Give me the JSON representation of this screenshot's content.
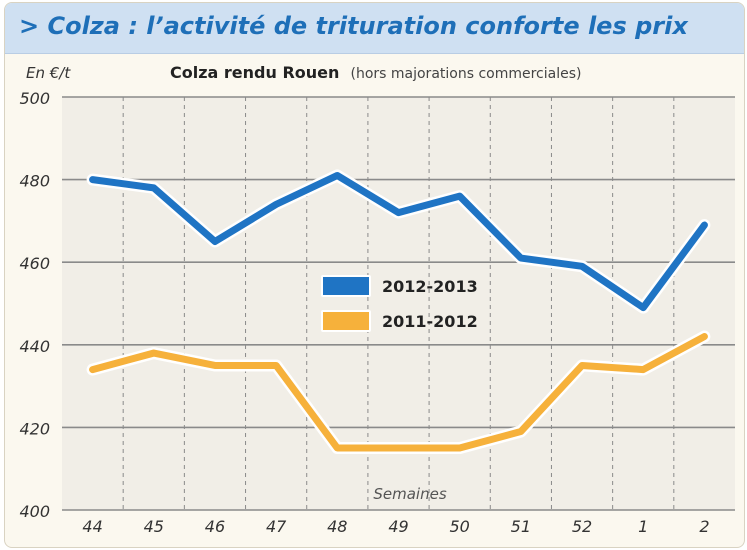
{
  "header": {
    "title": "> Colza : l’activité de trituration conforte les prix"
  },
  "chart_data": {
    "type": "line",
    "title": "Colza rendu Rouen",
    "subtitle": "(hors majorations commerciales)",
    "ylabel": "En €/t",
    "xlabel": "Semaines",
    "categories": [
      "44",
      "45",
      "46",
      "47",
      "48",
      "49",
      "50",
      "51",
      "52",
      "1",
      "2"
    ],
    "ylim": [
      400,
      500
    ],
    "yticks": [
      400,
      420,
      440,
      460,
      480,
      500
    ],
    "grid": {
      "horizontal": "solid",
      "vertical": "dashed"
    },
    "legend_position": "center",
    "series": [
      {
        "name": "2012-2013",
        "color": "#1f74c4",
        "values": [
          480,
          478,
          465,
          474,
          481,
          472,
          476,
          461,
          459,
          449,
          469
        ]
      },
      {
        "name": "2011-2012",
        "color": "#f6b13b",
        "values": [
          434,
          438,
          435,
          435,
          415,
          415,
          415,
          419,
          435,
          434,
          442
        ]
      }
    ]
  },
  "colors": {
    "title_bar_bg": "#cfe0f2",
    "title_text": "#1e6fb8",
    "plot_bg": "#f1eee7",
    "grid": "#8a8a8a"
  }
}
